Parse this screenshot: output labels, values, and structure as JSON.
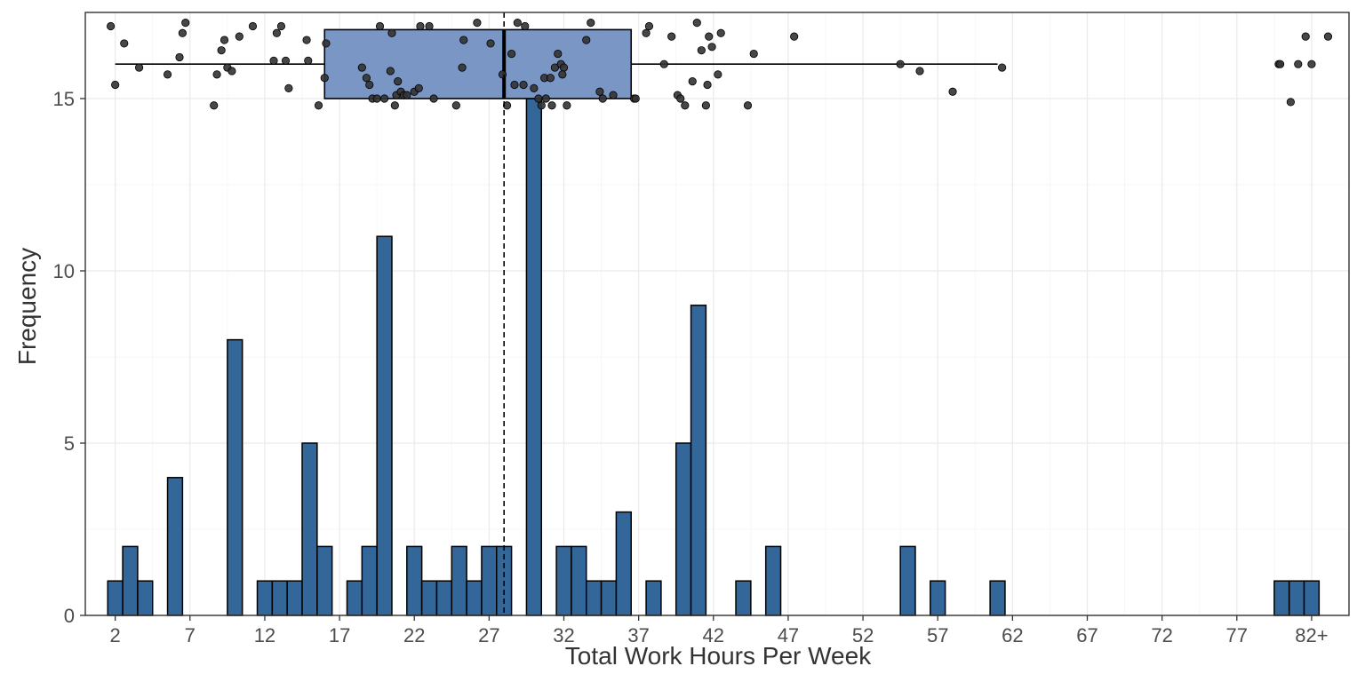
{
  "chart_data": {
    "type": "bar",
    "subtype": "histogram with jittered boxplot overlay",
    "xlabel": "Total Work Hours Per Week",
    "ylabel": "Frequency",
    "xlim": [
      0,
      84.5
    ],
    "ylim": [
      0,
      17.5
    ],
    "x_ticks": [
      {
        "value": 2,
        "label": "2"
      },
      {
        "value": 7,
        "label": "7"
      },
      {
        "value": 12,
        "label": "12"
      },
      {
        "value": 17,
        "label": "17"
      },
      {
        "value": 22,
        "label": "22"
      },
      {
        "value": 27,
        "label": "27"
      },
      {
        "value": 32,
        "label": "32"
      },
      {
        "value": 37,
        "label": "37"
      },
      {
        "value": 42,
        "label": "42"
      },
      {
        "value": 47,
        "label": "47"
      },
      {
        "value": 52,
        "label": "52"
      },
      {
        "value": 57,
        "label": "57"
      },
      {
        "value": 62,
        "label": "62"
      },
      {
        "value": 67,
        "label": "67"
      },
      {
        "value": 72,
        "label": "72"
      },
      {
        "value": 77,
        "label": "77"
      },
      {
        "value": 82,
        "label": "82+"
      }
    ],
    "y_ticks": [
      {
        "value": 0,
        "label": "0"
      },
      {
        "value": 5,
        "label": "5"
      },
      {
        "value": 10,
        "label": "10"
      },
      {
        "value": 15,
        "label": "15"
      }
    ],
    "bin_width": 1,
    "bars": [
      {
        "x": 2,
        "count": 1
      },
      {
        "x": 3,
        "count": 2
      },
      {
        "x": 4,
        "count": 1
      },
      {
        "x": 6,
        "count": 4
      },
      {
        "x": 10,
        "count": 8
      },
      {
        "x": 12,
        "count": 1
      },
      {
        "x": 13,
        "count": 1
      },
      {
        "x": 14,
        "count": 1
      },
      {
        "x": 15,
        "count": 5
      },
      {
        "x": 16,
        "count": 2
      },
      {
        "x": 18,
        "count": 1
      },
      {
        "x": 19,
        "count": 2
      },
      {
        "x": 20,
        "count": 11
      },
      {
        "x": 22,
        "count": 2
      },
      {
        "x": 23,
        "count": 1
      },
      {
        "x": 24,
        "count": 1
      },
      {
        "x": 25,
        "count": 2
      },
      {
        "x": 26,
        "count": 1
      },
      {
        "x": 27,
        "count": 2
      },
      {
        "x": 28,
        "count": 2
      },
      {
        "x": 30,
        "count": 15
      },
      {
        "x": 32,
        "count": 2
      },
      {
        "x": 33,
        "count": 2
      },
      {
        "x": 34,
        "count": 1
      },
      {
        "x": 35,
        "count": 1
      },
      {
        "x": 36,
        "count": 3
      },
      {
        "x": 38,
        "count": 1
      },
      {
        "x": 40,
        "count": 5
      },
      {
        "x": 41,
        "count": 9
      },
      {
        "x": 44,
        "count": 1
      },
      {
        "x": 46,
        "count": 2
      },
      {
        "x": 55,
        "count": 2
      },
      {
        "x": 57,
        "count": 1
      },
      {
        "x": 61,
        "count": 1
      },
      {
        "x": 80,
        "count": 1
      },
      {
        "x": 81,
        "count": 1
      },
      {
        "x": 82,
        "count": 1
      }
    ],
    "boxplot": {
      "min": 2,
      "q1": 16,
      "median": 28,
      "q3": 36.5,
      "max": 61,
      "y_bottom": 15,
      "y_top": 17,
      "whisker_y": 16
    },
    "mean_line": 28,
    "jitter_points": [
      [
        1.7,
        17.1
      ],
      [
        2.0,
        15.4
      ],
      [
        2.6,
        16.6
      ],
      [
        3.6,
        15.9
      ],
      [
        5.5,
        15.7
      ],
      [
        6.3,
        16.2
      ],
      [
        6.5,
        16.9
      ],
      [
        6.7,
        17.2
      ],
      [
        8.6,
        14.8
      ],
      [
        8.8,
        15.7
      ],
      [
        9.1,
        16.4
      ],
      [
        9.3,
        16.7
      ],
      [
        9.5,
        15.9
      ],
      [
        9.8,
        15.8
      ],
      [
        10.3,
        16.8
      ],
      [
        11.2,
        17.1
      ],
      [
        12.6,
        16.1
      ],
      [
        12.8,
        16.9
      ],
      [
        13.1,
        17.1
      ],
      [
        13.4,
        16.1
      ],
      [
        13.6,
        15.3
      ],
      [
        14.8,
        16.7
      ],
      [
        14.9,
        16.1
      ],
      [
        15.6,
        14.8
      ],
      [
        16.0,
        15.6
      ],
      [
        16.1,
        16.6
      ],
      [
        18.5,
        15.9
      ],
      [
        18.8,
        15.6
      ],
      [
        19.0,
        15.4
      ],
      [
        19.2,
        15.0
      ],
      [
        19.5,
        15.0
      ],
      [
        19.7,
        17.1
      ],
      [
        20.0,
        15.0
      ],
      [
        20.4,
        15.8
      ],
      [
        20.5,
        16.9
      ],
      [
        20.7,
        14.8
      ],
      [
        20.9,
        15.5
      ],
      [
        20.8,
        15.1
      ],
      [
        21.1,
        15.2
      ],
      [
        21.3,
        15.1
      ],
      [
        21.5,
        15.1
      ],
      [
        22.0,
        15.2
      ],
      [
        22.3,
        15.3
      ],
      [
        22.4,
        17.1
      ],
      [
        23.0,
        17.1
      ],
      [
        23.3,
        15.0
      ],
      [
        24.8,
        14.8
      ],
      [
        25.3,
        16.7
      ],
      [
        25.2,
        15.9
      ],
      [
        26.2,
        17.2
      ],
      [
        27.1,
        16.6
      ],
      [
        27.9,
        15.7
      ],
      [
        28.2,
        14.8
      ],
      [
        28.5,
        16.3
      ],
      [
        28.7,
        15.4
      ],
      [
        28.9,
        17.2
      ],
      [
        29.4,
        17.1
      ],
      [
        29.3,
        15.4
      ],
      [
        30.0,
        15.3
      ],
      [
        30.3,
        15.0
      ],
      [
        30.5,
        14.8
      ],
      [
        30.8,
        15.0
      ],
      [
        30.7,
        15.6
      ],
      [
        31.1,
        15.6
      ],
      [
        31.2,
        14.8
      ],
      [
        31.4,
        15.9
      ],
      [
        31.6,
        16.3
      ],
      [
        31.8,
        16.0
      ],
      [
        32.0,
        15.9
      ],
      [
        31.9,
        15.7
      ],
      [
        32.2,
        14.8
      ],
      [
        33.5,
        16.7
      ],
      [
        33.8,
        17.2
      ],
      [
        34.4,
        15.2
      ],
      [
        34.6,
        15.0
      ],
      [
        35.3,
        15.1
      ],
      [
        36.7,
        15.0
      ],
      [
        36.8,
        15.0
      ],
      [
        37.5,
        16.9
      ],
      [
        37.7,
        17.1
      ],
      [
        38.7,
        16.0
      ],
      [
        39.2,
        16.8
      ],
      [
        39.6,
        15.1
      ],
      [
        39.8,
        15.0
      ],
      [
        40.1,
        14.8
      ],
      [
        40.6,
        15.5
      ],
      [
        40.9,
        17.2
      ],
      [
        41.2,
        16.4
      ],
      [
        41.5,
        14.8
      ],
      [
        41.6,
        15.4
      ],
      [
        41.7,
        16.8
      ],
      [
        41.9,
        16.5
      ],
      [
        42.3,
        15.7
      ],
      [
        42.5,
        16.9
      ],
      [
        44.3,
        14.8
      ],
      [
        44.7,
        16.3
      ],
      [
        47.4,
        16.8
      ],
      [
        54.5,
        16.0
      ],
      [
        55.8,
        15.8
      ],
      [
        58.0,
        15.2
      ],
      [
        61.3,
        15.9
      ],
      [
        79.8,
        16.0
      ],
      [
        79.9,
        16.0
      ],
      [
        80.6,
        14.9
      ],
      [
        81.1,
        16.0
      ],
      [
        81.6,
        16.8
      ],
      [
        82.0,
        16.0
      ],
      [
        83.1,
        16.8
      ]
    ],
    "colors": {
      "bar_fill": "#336699",
      "box_fill": "#7996c5",
      "point_fill": "#333333",
      "outline": "#000000",
      "panel_border": "#333333"
    },
    "grid": true,
    "legend": "none"
  }
}
